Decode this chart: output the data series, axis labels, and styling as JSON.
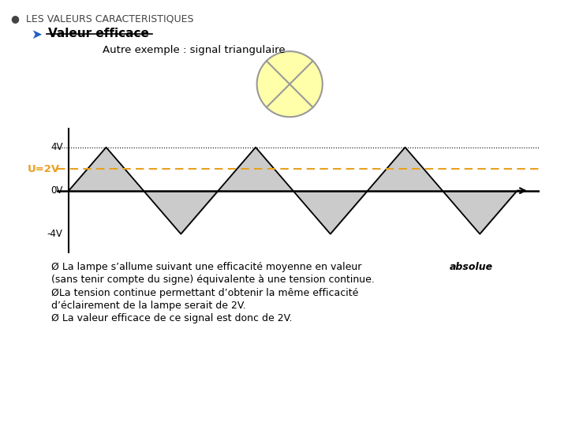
{
  "title": "LES VALEURS CARACTERISTIQUES",
  "subtitle": "Valeur efficace",
  "subtitle2": "Autre exemple : signal triangulaire",
  "bg_color": "#ffffff",
  "signal_amplitude": 4,
  "rms_value": 2,
  "fill_color": "#b0b0b0",
  "fill_alpha": 0.65,
  "rms_color": "#e8a020",
  "axis_color": "#000000",
  "text_line1a": "Ø La lampe s’allume suivant une efficacité moyenne en valeur ",
  "text_line1b": "absolue",
  "text_line2": "(sans tenir compte du signe) équivalente à une tension continue.",
  "text_line3": "ØLa tension continue permettant d’obtenir la même efficacité",
  "text_line4": "d’éclairement de la lampe serait de 2V.",
  "text_line5": "Ø La valeur efficace de ce signal est donc de 2V."
}
